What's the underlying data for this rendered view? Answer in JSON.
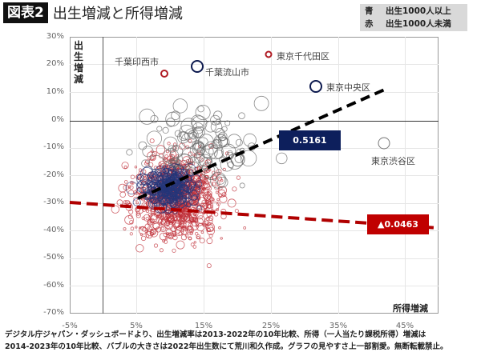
{
  "header": {
    "figure_label": "図表2",
    "title": "出生増減と所得増減"
  },
  "legend": {
    "items": [
      {
        "key": "青",
        "label": "出生1000人以上",
        "color": "#1f2a6b"
      },
      {
        "key": "赤",
        "label": "出生1000人未満",
        "color": "#c0202a"
      }
    ]
  },
  "axes": {
    "y_label": "出生増減",
    "x_label": "所得増減",
    "y_ticks": [
      "30%",
      "20%",
      "10%",
      "0%",
      "-10%",
      "-20%",
      "-30%",
      "-40%",
      "-50%",
      "-60%",
      "-70%"
    ],
    "x_ticks": [
      "-5%",
      "5%",
      "15%",
      "25%",
      "35%",
      "45%"
    ]
  },
  "annotations": {
    "inzai": "千葉印西市",
    "nagareyama": "千葉流山市",
    "chiyoda": "東京千代田区",
    "chuo": "東京中央区",
    "shibuya": "東京渋谷区"
  },
  "regression": {
    "blue_label": "0.5161",
    "red_label": "▲0.0463",
    "blue_color": "#0d1f5c",
    "red_color": "#c00000"
  },
  "footer": {
    "line1": "デジタル庁ジャパン・ダッシュボードより、出生増減率は2013-2022年の10年比較、所得（一人当たり課税所得）増減は",
    "line2": "2014-2023年の10年比較、バブルの大きさは2022年出生数にて荒川和久作成。グラフの見やすさ上一部割愛。無断転載禁止。"
  },
  "chart_data": {
    "type": "scatter",
    "title": "出生増減と所得増減",
    "xlabel": "所得増減",
    "ylabel": "出生増減",
    "xlim": [
      -0.05,
      0.5
    ],
    "ylim": [
      -0.7,
      0.3
    ],
    "x_ticks": [
      "-5%",
      "5%",
      "15%",
      "25%",
      "35%",
      "45%"
    ],
    "y_ticks": [
      "30%",
      "20%",
      "10%",
      "0%",
      "-10%",
      "-20%",
      "-30%",
      "-40%",
      "-50%",
      "-60%",
      "-70%"
    ],
    "grid": true,
    "legend": [
      "青 出生1000人以上",
      "赤 出生1000人未満"
    ],
    "legend_position": "top-right",
    "bubble_size": "2022年出生数",
    "series": [
      {
        "name": "出生1000人以上 (青)",
        "trend_slope": 0.5161,
        "trend_line": [
          [
            0.05,
            -0.28
          ],
          [
            0.42,
            0.11
          ]
        ]
      },
      {
        "name": "出生1000人未満 (赤)",
        "trend_slope": -0.0463,
        "trend_line": [
          [
            -0.05,
            -0.295
          ],
          [
            0.5,
            -0.39
          ]
        ]
      }
    ],
    "labeled_points": [
      {
        "name": "千葉印西市",
        "x": 0.09,
        "y": 0.17,
        "series": "赤"
      },
      {
        "name": "千葉流山市",
        "x": 0.145,
        "y": 0.2,
        "series": "青"
      },
      {
        "name": "東京千代田区",
        "x": 0.255,
        "y": 0.24,
        "series": "赤"
      },
      {
        "name": "東京中央区",
        "x": 0.315,
        "y": 0.125,
        "series": "青"
      },
      {
        "name": "東京渋谷区",
        "x": 0.415,
        "y": -0.08,
        "series": "灰"
      }
    ],
    "cluster_center": {
      "x": 0.11,
      "y": -0.25
    }
  }
}
